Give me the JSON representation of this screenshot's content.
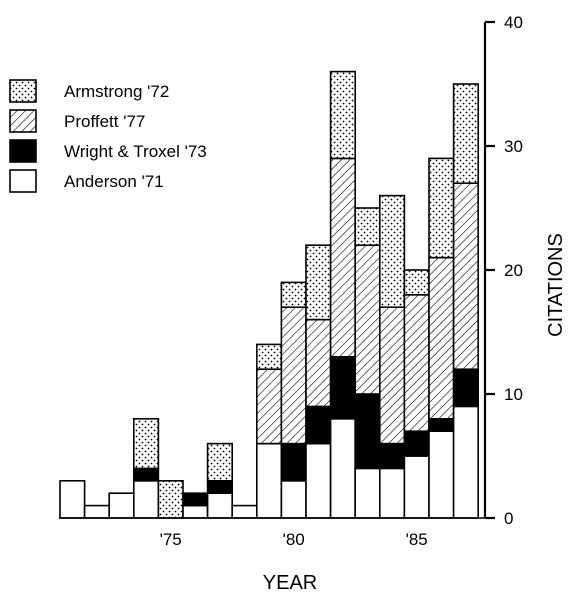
{
  "chart_data": {
    "type": "bar",
    "stacked": true,
    "title": "",
    "xlabel": "YEAR",
    "ylabel": "CITATIONS",
    "ylim": [
      0,
      40
    ],
    "y_ticks": [
      0,
      10,
      20,
      30,
      40
    ],
    "y_axis_position": "right",
    "x_range": [
      1971,
      1987
    ],
    "x_tick_labels": [
      {
        "year": 1975,
        "label": "'75"
      },
      {
        "year": 1980,
        "label": "'80"
      },
      {
        "year": 1985,
        "label": "'85"
      }
    ],
    "categories": [
      1971,
      1972,
      1973,
      1974,
      1975,
      1976,
      1977,
      1978,
      1979,
      1980,
      1981,
      1982,
      1983,
      1984,
      1985,
      1986,
      1987
    ],
    "legend_position": "top-left",
    "series": [
      {
        "name": "Anderson '71",
        "pattern": "white",
        "values": [
          3,
          1,
          2,
          3,
          0,
          1,
          2,
          1,
          6,
          3,
          6,
          8,
          4,
          4,
          5,
          7,
          9
        ]
      },
      {
        "name": "Wright & Troxel '73",
        "pattern": "black",
        "values": [
          0,
          0,
          0,
          1,
          0,
          1,
          1,
          0,
          0,
          3,
          3,
          5,
          6,
          2,
          2,
          1,
          3
        ]
      },
      {
        "name": "Proffett '77",
        "pattern": "hatch",
        "values": [
          0,
          0,
          0,
          0,
          0,
          0,
          0,
          0,
          6,
          11,
          7,
          16,
          12,
          11,
          11,
          13,
          15
        ]
      },
      {
        "name": "Armstrong '72",
        "pattern": "dots",
        "values": [
          0,
          0,
          0,
          4,
          3,
          0,
          3,
          0,
          2,
          2,
          6,
          7,
          3,
          9,
          2,
          8,
          8
        ]
      }
    ],
    "legend": [
      {
        "name": "Armstrong '72",
        "pattern": "dots"
      },
      {
        "name": "Proffett '77",
        "pattern": "hatch"
      },
      {
        "name": "Wright & Troxel '73",
        "pattern": "black"
      },
      {
        "name": "Anderson '71",
        "pattern": "white"
      }
    ]
  }
}
